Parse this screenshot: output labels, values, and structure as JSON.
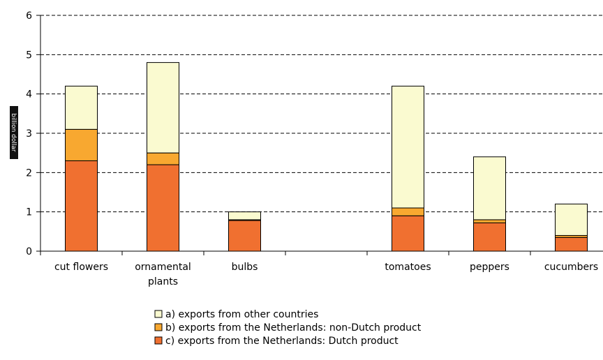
{
  "chart_data": {
    "type": "bar",
    "stacked": true,
    "categories": [
      [
        "cut flowers"
      ],
      [
        "ornamental",
        "plants"
      ],
      [
        "bulbs"
      ],
      [
        ""
      ],
      [
        "tomatoes"
      ],
      [
        "peppers"
      ],
      [
        "cucumbers"
      ]
    ],
    "series": [
      {
        "name": "c) exports from the Netherlands: Dutch product",
        "color": "#f07030",
        "values": [
          2.3,
          2.2,
          0.78,
          null,
          0.9,
          0.72,
          0.35
        ]
      },
      {
        "name": "b) exports from the Netherlands: non-Dutch product",
        "color": "#f8a830",
        "values": [
          0.8,
          0.3,
          0.02,
          null,
          0.2,
          0.08,
          0.05
        ]
      },
      {
        "name": "a) exports from other countries",
        "color": "#fafad0",
        "values": [
          1.1,
          2.3,
          0.2,
          null,
          3.1,
          1.6,
          0.8
        ]
      }
    ],
    "legend_order": [
      2,
      1,
      0
    ],
    "ylabel": "billion dollar",
    "ylim": [
      0,
      6
    ],
    "yticks": [
      0,
      1,
      2,
      3,
      4,
      5,
      6
    ],
    "grid": "horizontal dashed",
    "legend_position": "bottom"
  }
}
